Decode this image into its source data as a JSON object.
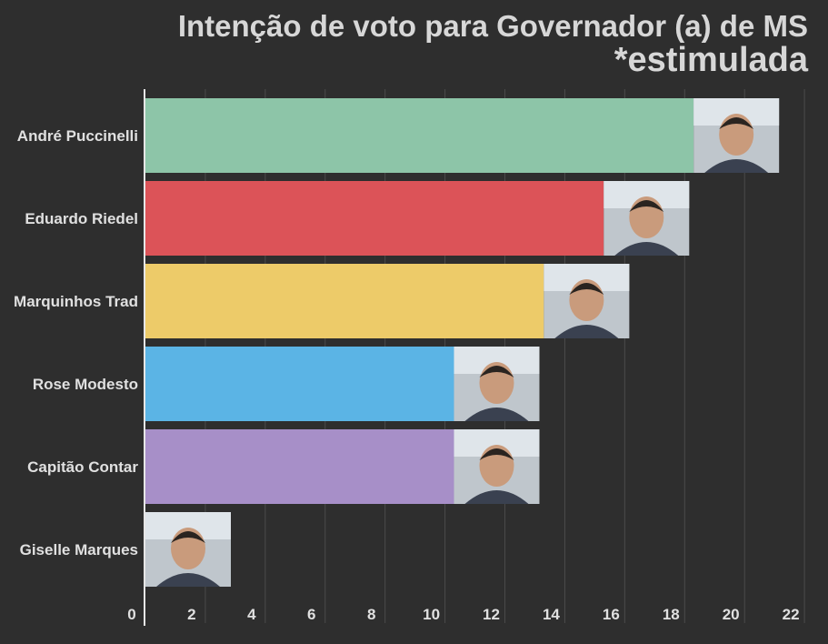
{
  "chart_title": {
    "line1": "Intenção de voto para Governador (a) de MS",
    "line2": "*estimulada"
  },
  "chart_data": {
    "type": "bar",
    "orientation": "horizontal",
    "title": "Intenção de voto para Governador (a) de MS *estimulada",
    "categories": [
      "André Puccinelli",
      "Eduardo Riedel",
      "Marquinhos Trad",
      "Rose Modesto",
      "Capitão Contar",
      "Giselle Marques"
    ],
    "values": [
      18.3,
      15.3,
      13.3,
      10.3,
      10.3,
      0
    ],
    "colors": [
      "#8dc5a8",
      "#dc5358",
      "#edcb69",
      "#5bb4e5",
      "#a78fc8",
      "#8dc5a8"
    ],
    "photo_icons": [
      "portrait-andre-puccinelli",
      "portrait-eduardo-riedel",
      "portrait-marquinhos-trad",
      "portrait-rose-modesto",
      "portrait-capitao-contar",
      "portrait-giselle-marques"
    ],
    "xticks": [
      "0",
      "2",
      "4",
      "6",
      "8",
      "10",
      "12",
      "14",
      "16",
      "18",
      "20",
      "22"
    ],
    "xlim": [
      0,
      22.3
    ],
    "grid": true,
    "legend": "none"
  }
}
